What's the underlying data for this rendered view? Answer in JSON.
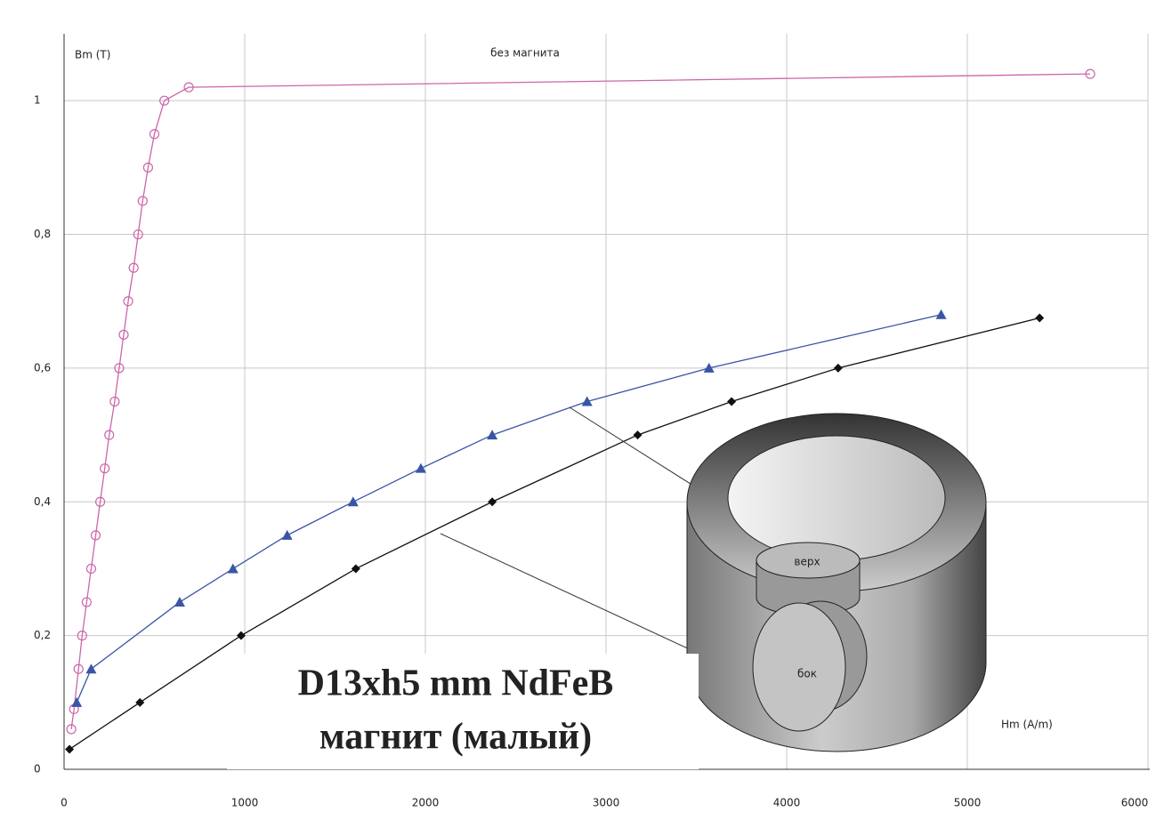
{
  "chart_data": {
    "type": "line",
    "y_label": "Bm (T)",
    "x_label": "Hm (A/m)",
    "annotations": [
      "D13xh5 mm NdFeB",
      "магнит (малый)"
    ],
    "xlim": [
      0,
      6000
    ],
    "xticks": [
      0,
      1000,
      2000,
      3000,
      4000,
      5000,
      6000
    ],
    "ylim": [
      0,
      1.1
    ],
    "yticks": [
      0,
      {
        "value": 0.2,
        "label": "0,2"
      },
      {
        "value": 0.4,
        "label": "0,4"
      },
      {
        "value": 0.6,
        "label": "0,6"
      },
      {
        "value": 0.8,
        "label": "0,8"
      },
      1
    ],
    "grid": true,
    "series": [
      {
        "name": "без магнита",
        "color": "#cc66aa",
        "marker": "circle",
        "x": [
          40,
          55,
          80,
          100,
          125,
          150,
          175,
          200,
          225,
          250,
          280,
          305,
          330,
          355,
          385,
          410,
          435,
          465,
          500,
          555,
          690,
          5680
        ],
        "values": [
          0.06,
          0.09,
          0.15,
          0.2,
          0.25,
          0.3,
          0.35,
          0.4,
          0.45,
          0.5,
          0.55,
          0.6,
          0.65,
          0.7,
          0.75,
          0.8,
          0.85,
          0.9,
          0.95,
          1.0,
          1.02,
          1.04
        ]
      },
      {
        "name": "верх",
        "color": "#3a55a5",
        "marker": "triangle",
        "x": [
          70,
          150,
          640,
          935,
          1235,
          1600,
          1975,
          2370,
          2895,
          3570,
          4855
        ],
        "values": [
          0.1,
          0.15,
          0.25,
          0.3,
          0.35,
          0.4,
          0.45,
          0.5,
          0.55,
          0.6,
          0.68
        ]
      },
      {
        "name": "бок",
        "color": "#111111",
        "marker": "diamond",
        "x": [
          30,
          420,
          980,
          1615,
          2370,
          3175,
          3695,
          4285,
          5400
        ],
        "values": [
          0.03,
          0.1,
          0.2,
          0.3,
          0.4,
          0.5,
          0.55,
          0.6,
          0.675
        ]
      }
    ]
  }
}
